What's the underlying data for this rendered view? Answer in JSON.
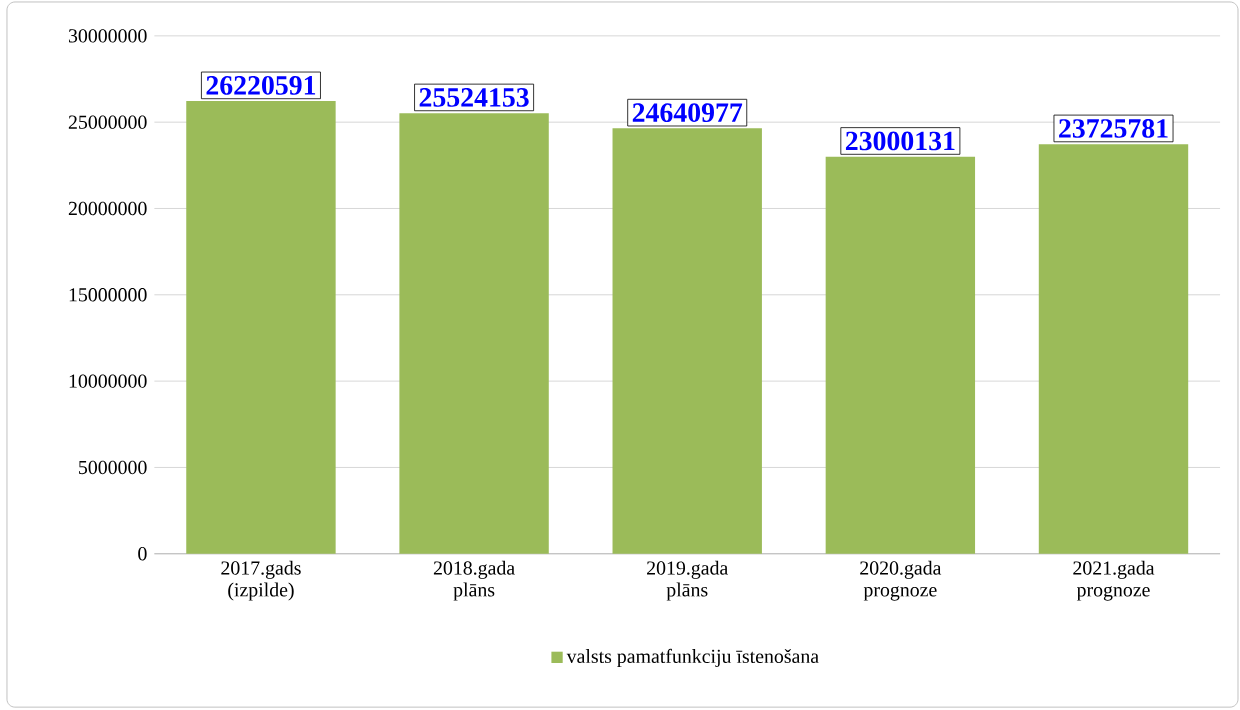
{
  "chart_data": {
    "type": "bar",
    "categories": [
      "2017.gads (izpilde)",
      "2018.gada plāns",
      "2019.gada plāns",
      "2020.gada prognoze",
      "2021.gada prognoze"
    ],
    "series": [
      {
        "name": "valsts pamatfunkciju īstenošana",
        "color": "#9bbb59",
        "values": [
          26220591,
          25524153,
          24640977,
          23000131,
          23725781
        ]
      }
    ],
    "ylim": [
      0,
      30000000
    ],
    "yticks": [
      0,
      5000000,
      10000000,
      15000000,
      20000000,
      25000000,
      30000000
    ],
    "grid": "y",
    "legend": "bottom",
    "data_labels": true
  }
}
